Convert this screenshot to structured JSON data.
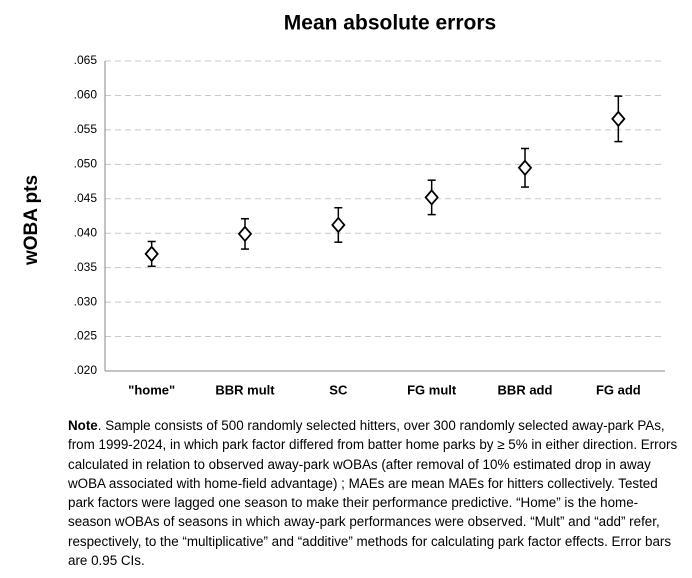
{
  "chart_data": {
    "type": "errorbar",
    "title": "Mean absolute errors",
    "y_label": "wOBA pts",
    "categories": [
      "\"home\"",
      "BBR mult",
      "SC",
      "FG mult",
      "BBR add",
      "FG add"
    ],
    "values": [
      0.037,
      0.0399,
      0.0412,
      0.0452,
      0.0495,
      0.0566
    ],
    "errors": [
      0.0018,
      0.0022,
      0.0025,
      0.0025,
      0.0028,
      0.0033
    ],
    "color": "#000000",
    "ylim": [
      0.02,
      0.065
    ],
    "yticks": [
      {
        "value": 0.02,
        "label": ".020"
      },
      {
        "value": 0.025,
        "label": ".025"
      },
      {
        "value": 0.03,
        "label": ".030"
      },
      {
        "value": 0.035,
        "label": ".035"
      },
      {
        "value": 0.04,
        "label": ".040"
      },
      {
        "value": 0.045,
        "label": ".045"
      },
      {
        "value": 0.05,
        "label": ".050"
      },
      {
        "value": 0.055,
        "label": ".055"
      },
      {
        "value": 0.06,
        "label": ".060"
      },
      {
        "value": 0.065,
        "label": ".065"
      }
    ],
    "grid": true
  },
  "note": {
    "label": "Note",
    "text": ". Sample consists of 500 randomly selected hitters, over 300 randomly selected away-park PAs, from 1999-2024, in which park factor differed from batter home parks by ≥ 5% in either direction. Errors calculated in relation to observed away-park wOBAs (after removal of 10% estimated drop in away wOBA associated with home-field advantage) ; MAEs are mean MAEs for hitters collectively. Tested park factors were lagged one season to make their performance predictive. “Home” is the home-season wOBAs of seasons in which away-park performances were observed. “Mult” and “add” refer, respectively, to the “multiplicative” and “additive” methods for calculating park factor effects. Error bars are 0.95 CIs."
  }
}
